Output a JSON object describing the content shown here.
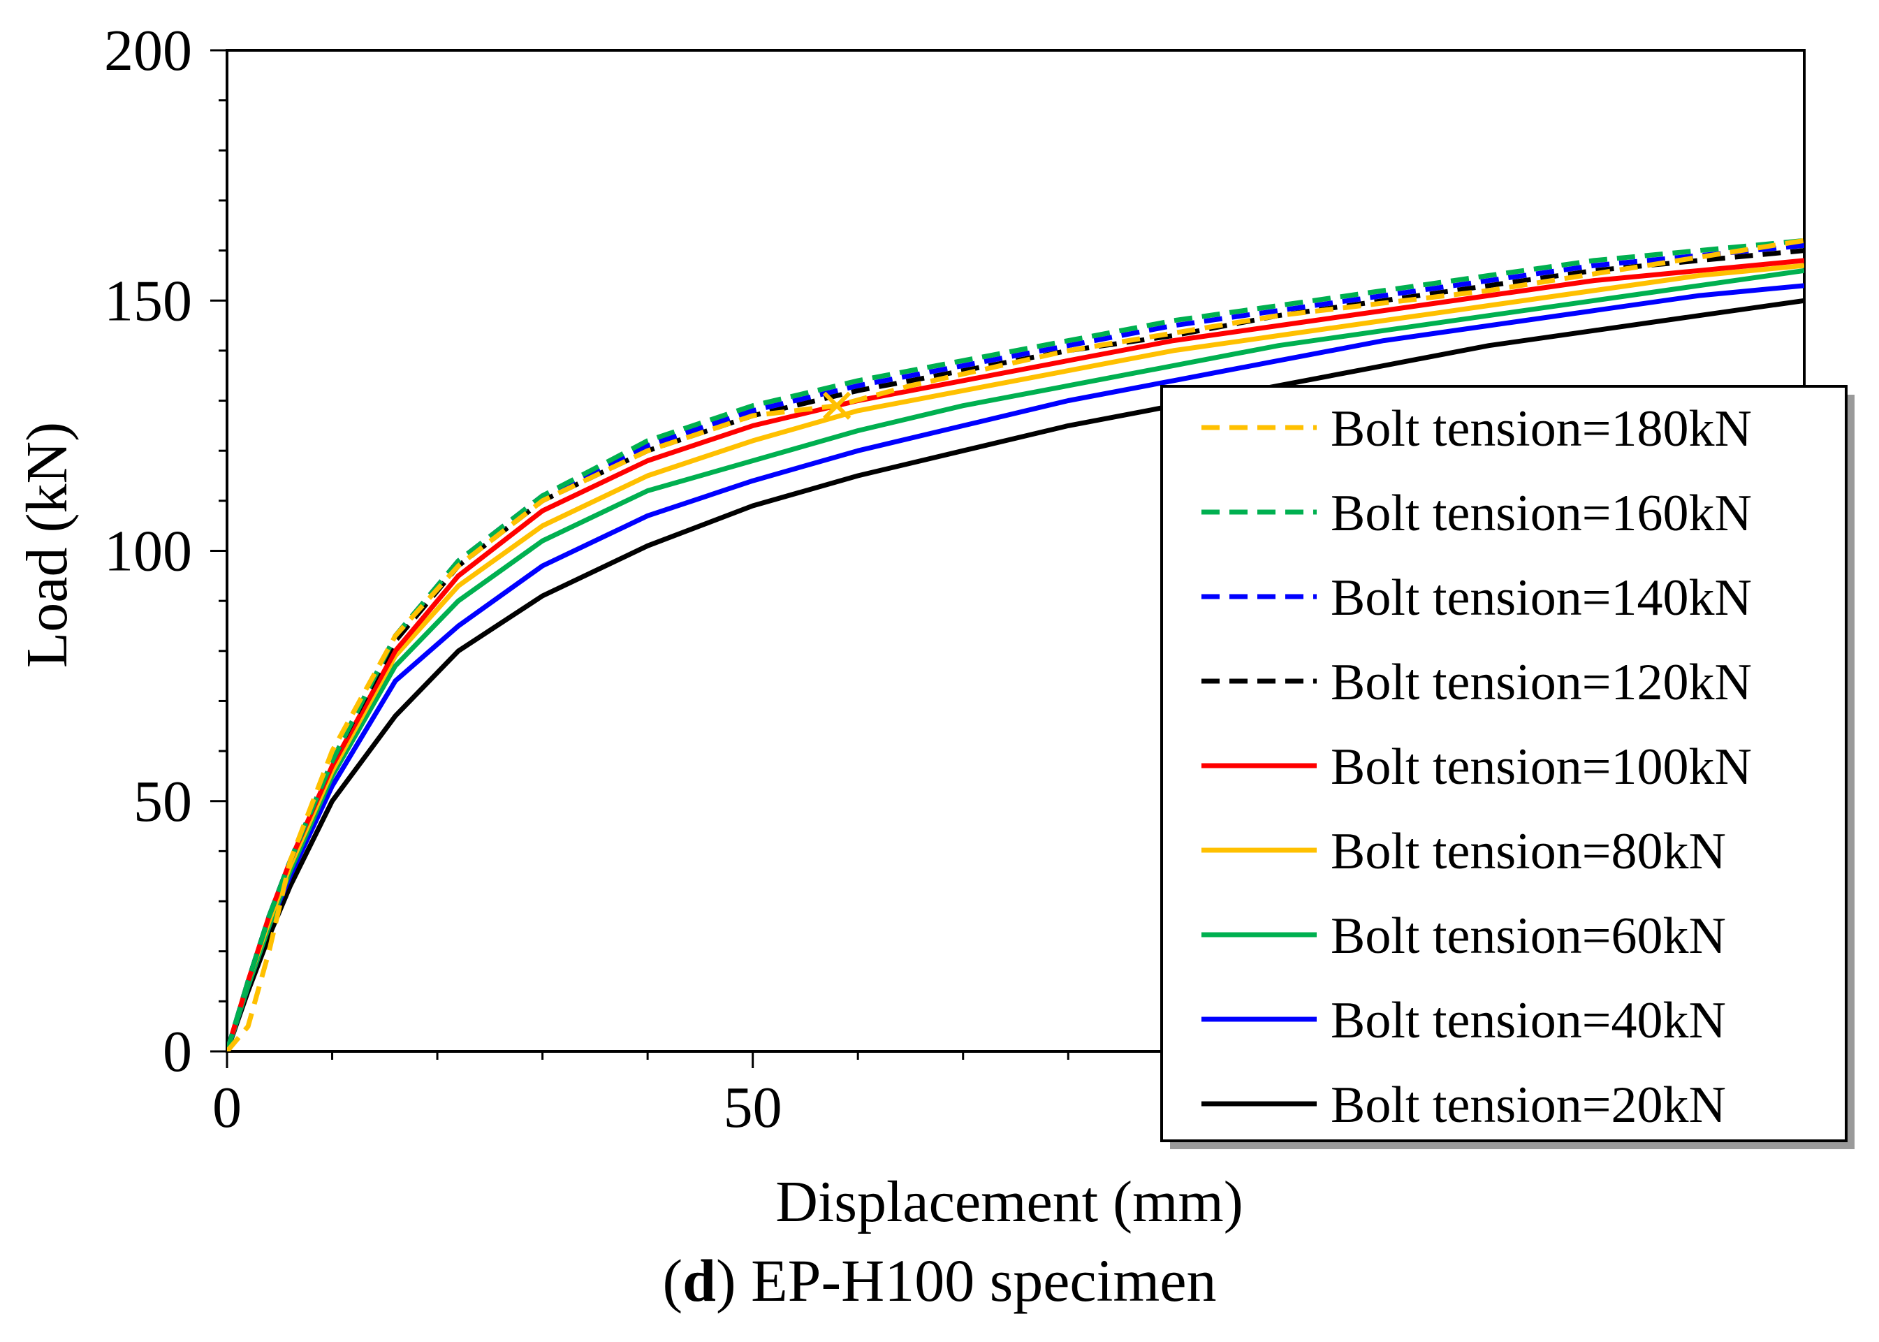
{
  "chart_data": {
    "type": "line",
    "title": "",
    "xlabel": "Displacement (mm)",
    "ylabel": "Load (kN)",
    "xlim": [
      0,
      150
    ],
    "ylim": [
      0,
      200
    ],
    "x_ticks": [
      0,
      50,
      100,
      150
    ],
    "x_tick_labels_visible": [
      "0",
      "50"
    ],
    "y_ticks": [
      0,
      50,
      100,
      150,
      200
    ],
    "y_tick_labels": [
      "0",
      "50",
      "100",
      "150",
      "200"
    ],
    "legend_position": "right",
    "series": [
      {
        "name": "Bolt tension=180kN",
        "color": "#FFC000",
        "dash": true,
        "x": [
          0,
          2,
          4,
          6,
          10,
          16,
          22,
          30,
          40,
          50,
          58,
          65,
          80,
          100,
          120,
          150
        ],
        "y": [
          0,
          5,
          20,
          38,
          60,
          83,
          97,
          110,
          120,
          127,
          129,
          133,
          140,
          147,
          152,
          162
        ]
      },
      {
        "name": "Bolt tension=160kN",
        "color": "#00B050",
        "dash": true,
        "x": [
          0,
          2,
          4,
          6,
          10,
          16,
          22,
          30,
          40,
          50,
          60,
          70,
          80,
          90,
          100,
          110,
          120,
          130,
          140,
          150
        ],
        "y": [
          0,
          14,
          27,
          38,
          58,
          83,
          98,
          111,
          122,
          129,
          134,
          138,
          142,
          146,
          149,
          152,
          155,
          158,
          160,
          162
        ]
      },
      {
        "name": "Bolt tension=140kN",
        "color": "#0000FF",
        "dash": true,
        "x": [
          0,
          2,
          4,
          6,
          10,
          16,
          22,
          30,
          40,
          50,
          60,
          70,
          80,
          90,
          100,
          110,
          120,
          130,
          140,
          150
        ],
        "y": [
          0,
          14,
          27,
          38,
          58,
          83,
          98,
          111,
          121,
          128,
          133,
          137,
          141,
          145,
          148,
          151,
          154,
          157,
          159,
          161
        ]
      },
      {
        "name": "Bolt tension=120kN",
        "color": "#000000",
        "dash": true,
        "x": [
          0,
          2,
          4,
          6,
          10,
          16,
          22,
          30,
          40,
          50,
          60,
          70,
          80,
          90,
          100,
          110,
          120,
          130,
          140,
          150
        ],
        "y": [
          0,
          14,
          27,
          38,
          58,
          82,
          97,
          110,
          120,
          127,
          132,
          136,
          140,
          143,
          147,
          150,
          153,
          156,
          158,
          160
        ]
      },
      {
        "name": "Bolt tension=100kN",
        "color": "#FF0000",
        "dash": false,
        "x": [
          0,
          2,
          4,
          6,
          10,
          16,
          22,
          30,
          40,
          50,
          60,
          70,
          80,
          90,
          100,
          110,
          120,
          130,
          140,
          150
        ],
        "y": [
          0,
          14,
          27,
          38,
          57,
          80,
          95,
          108,
          118,
          125,
          130,
          134,
          138,
          142,
          145,
          148,
          151,
          154,
          156,
          158
        ]
      },
      {
        "name": "Bolt tension=80kN",
        "color": "#FFC000",
        "dash": false,
        "x": [
          0,
          2,
          4,
          6,
          10,
          16,
          22,
          30,
          40,
          50,
          60,
          70,
          80,
          90,
          100,
          110,
          120,
          130,
          140,
          150
        ],
        "y": [
          0,
          14,
          26,
          37,
          56,
          79,
          93,
          105,
          115,
          122,
          128,
          132,
          136,
          140,
          143,
          146,
          149,
          152,
          155,
          157
        ]
      },
      {
        "name": "Bolt tension=60kN",
        "color": "#00B050",
        "dash": false,
        "x": [
          0,
          2,
          4,
          6,
          10,
          16,
          22,
          30,
          40,
          50,
          60,
          70,
          80,
          90,
          100,
          110,
          120,
          130,
          140,
          150
        ],
        "y": [
          0,
          13,
          25,
          36,
          55,
          77,
          90,
          102,
          112,
          118,
          124,
          129,
          133,
          137,
          141,
          144,
          147,
          150,
          153,
          156
        ]
      },
      {
        "name": "Bolt tension=40kN",
        "color": "#0000FF",
        "dash": false,
        "x": [
          0,
          2,
          4,
          6,
          10,
          16,
          22,
          30,
          40,
          50,
          60,
          70,
          80,
          90,
          100,
          110,
          120,
          130,
          140,
          150
        ],
        "y": [
          0,
          13,
          25,
          35,
          53,
          74,
          85,
          97,
          107,
          114,
          120,
          125,
          130,
          134,
          138,
          142,
          145,
          148,
          151,
          153
        ]
      },
      {
        "name": "Bolt tension=20kN",
        "color": "#000000",
        "dash": false,
        "x": [
          0,
          2,
          4,
          6,
          10,
          16,
          22,
          30,
          40,
          50,
          60,
          70,
          80,
          90,
          100,
          110,
          120,
          130,
          140,
          150
        ],
        "y": [
          0,
          12,
          23,
          33,
          50,
          67,
          80,
          91,
          101,
          109,
          115,
          120,
          125,
          129,
          133,
          137,
          141,
          144,
          147,
          150
        ]
      }
    ],
    "annotation": {
      "marker": "x",
      "color": "#FFC000",
      "x": 58,
      "y": 129
    }
  },
  "caption": {
    "letter": "d",
    "rest": ") EP-H100 specimen",
    "open": "("
  }
}
